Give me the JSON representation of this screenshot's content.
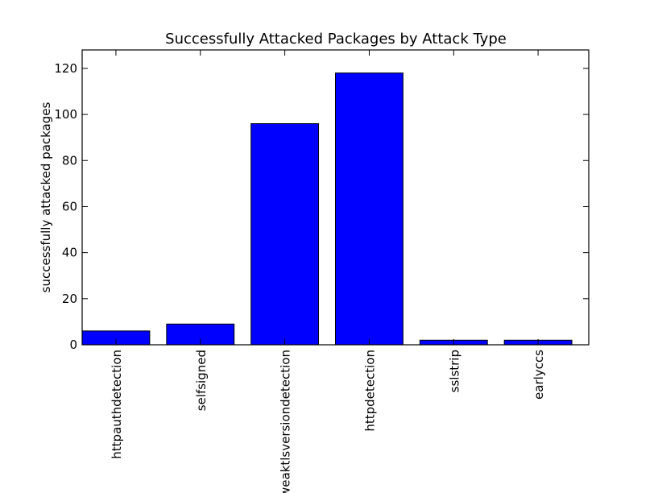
{
  "chart_data": {
    "type": "bar",
    "title": "Successfully Attacked Packages by Attack Type",
    "xlabel": "",
    "ylabel": "successfully attacked packages",
    "categories": [
      "httpauthdetection",
      "selfsigned",
      "weaktlsversiondetection",
      "httpdetection",
      "sslstrip",
      "earlyccs"
    ],
    "values": [
      6,
      9,
      96,
      118,
      2,
      2
    ],
    "ylim": [
      0,
      128
    ],
    "yticks": [
      0,
      20,
      40,
      60,
      80,
      100,
      120
    ],
    "bar_color": "#0000ff",
    "edge_color": "#000000",
    "grid": false,
    "legend": "none"
  }
}
